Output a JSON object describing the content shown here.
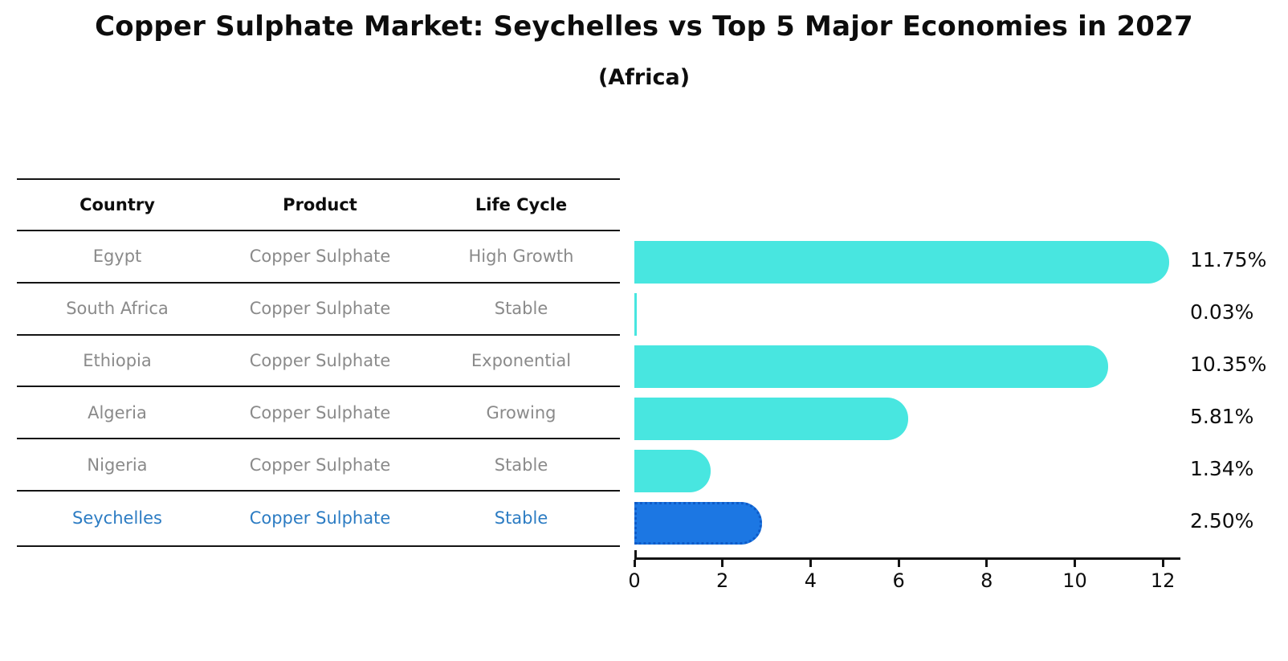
{
  "title": "Copper Sulphate Market: Seychelles vs Top 5 Major Economies in 2027",
  "subtitle": "(Africa)",
  "table": {
    "headers": [
      "Country",
      "Product",
      "Life Cycle"
    ],
    "rows": [
      {
        "country": "Egypt",
        "product": "Copper Sulphate",
        "life_cycle": "High Growth",
        "highlighted": false
      },
      {
        "country": "South Africa",
        "product": "Copper Sulphate",
        "life_cycle": "Stable",
        "highlighted": false
      },
      {
        "country": "Ethiopia",
        "product": "Copper Sulphate",
        "life_cycle": "Exponential",
        "highlighted": false
      },
      {
        "country": "Algeria",
        "product": "Copper Sulphate",
        "life_cycle": "Growing",
        "highlighted": false
      },
      {
        "country": "Nigeria",
        "product": "Copper Sulphate",
        "life_cycle": "Stable",
        "highlighted": false
      },
      {
        "country": "Seychelles",
        "product": "Copper Sulphate",
        "life_cycle": "Stable",
        "highlighted": true
      }
    ]
  },
  "chart_data": {
    "type": "bar",
    "orientation": "horizontal",
    "title": "Copper Sulphate Market: Seychelles vs Top 5 Major Economies in 2027 (Africa)",
    "categories": [
      "Egypt",
      "South Africa",
      "Ethiopia",
      "Algeria",
      "Nigeria",
      "Seychelles"
    ],
    "values": [
      11.75,
      0.03,
      10.35,
      5.81,
      1.34,
      2.5
    ],
    "value_labels": [
      "11.75%",
      "0.03%",
      "10.35%",
      "5.81%",
      "1.34%",
      "2.50%"
    ],
    "xlabel": "",
    "ylabel": "",
    "xlim": [
      0,
      12
    ],
    "x_ticks": [
      0,
      2,
      4,
      6,
      8,
      10,
      12
    ],
    "grid": false,
    "legend": "none",
    "bar_color": "#48e6e0",
    "highlight_color": "#1c77e3",
    "highlight_border_color": "#0e5bc8",
    "highlight_index": 5
  },
  "colors": {
    "background": "#ffffff",
    "text_primary": "#0d0d0d",
    "text_secondary": "#8a8a8a",
    "highlight_text": "#2c7cc3",
    "axis": "#141414"
  }
}
